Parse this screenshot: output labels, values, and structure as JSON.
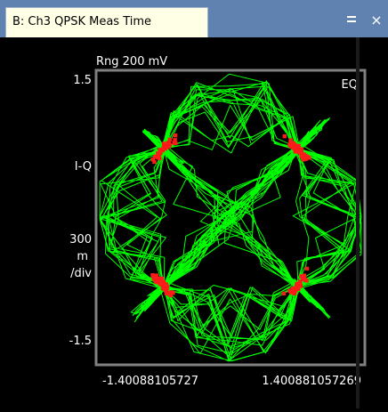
{
  "window": {
    "tab_title": "B: Ch3 QPSK Meas Time",
    "menu_icon": "menu-icon",
    "close_glyph": "×"
  },
  "chart_data": {
    "type": "scatter",
    "mode": "EQ",
    "range_label": "Rng 200 mV",
    "y_axis": {
      "label": "I-Q",
      "scale_label": [
        "300",
        "m",
        "/div"
      ],
      "top_tick": "1.5",
      "bottom_tick": "-1.5",
      "ylim": [
        -1.5,
        1.5
      ]
    },
    "x_axis": {
      "left_tick": "-1.40088105727",
      "right_tick": "1.400881057269",
      "xlim": [
        -1.40088105727,
        1.400881057269
      ]
    },
    "constellation_points": [
      {
        "I": -0.71,
        "Q": 0.71
      },
      {
        "I": 0.71,
        "Q": 0.71
      },
      {
        "I": -0.71,
        "Q": -0.71
      },
      {
        "I": 0.71,
        "Q": -0.71
      }
    ],
    "colors": {
      "trace": "#00ff00",
      "points": "#ff1a1a",
      "frame": "#808080"
    }
  }
}
